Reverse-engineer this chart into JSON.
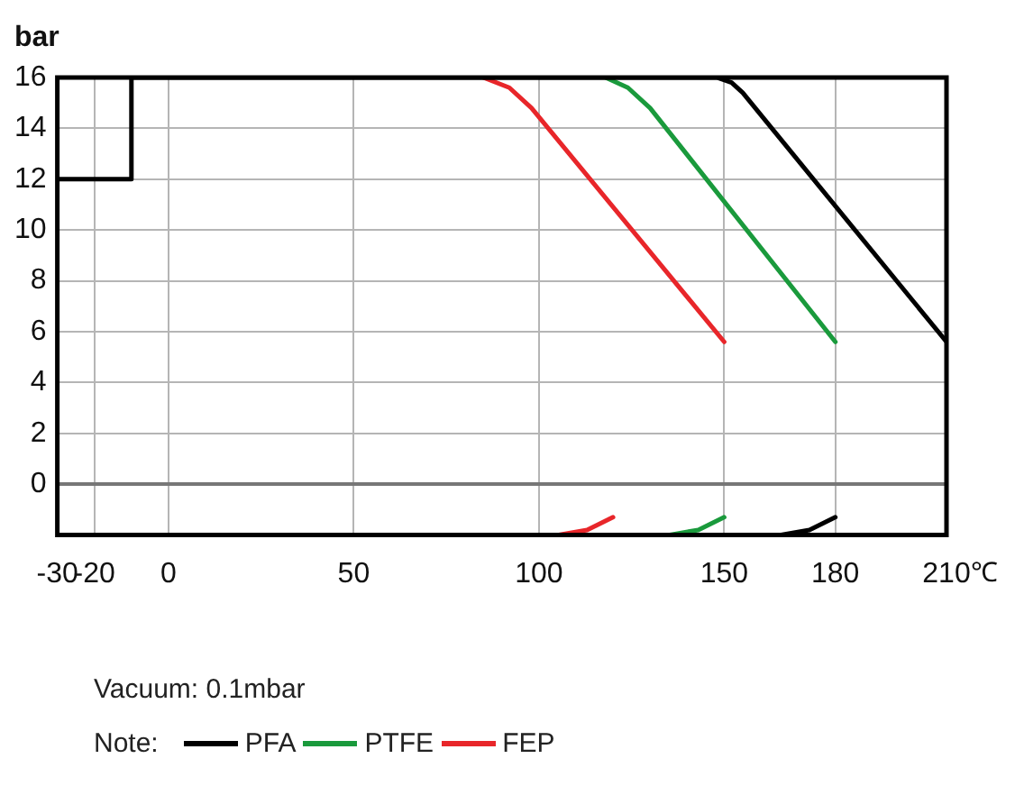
{
  "chart_data": {
    "type": "line",
    "ylabel": "bar",
    "xlabel": "℃",
    "legend_title": "Note:",
    "annotations": [
      "Vacuum: 0.1mbar"
    ],
    "xlim": [
      -30,
      210
    ],
    "xticks": [
      -30,
      -20,
      0,
      50,
      100,
      150,
      180,
      210
    ],
    "ylim": [
      -2,
      16
    ],
    "yticks": [
      0,
      2,
      4,
      6,
      8,
      10,
      12,
      14,
      16
    ],
    "grid": true,
    "legend": "bottom",
    "marker": "none",
    "line_style": "solid",
    "series": [
      {
        "name": "PFA",
        "color": "#000000",
        "x": [
          -30,
          -10,
          -10,
          148,
          152,
          155,
          210
        ],
        "values": [
          12,
          12,
          16,
          16,
          15.8,
          15.4,
          5.6
        ]
      },
      {
        "name": "PTFE",
        "color": "#1a9a3c",
        "x": [
          118,
          124,
          130,
          180
        ],
        "values": [
          16,
          15.6,
          14.8,
          5.6
        ]
      },
      {
        "name": "FEP",
        "color": "#e8262a",
        "x": [
          85,
          92,
          98,
          150
        ],
        "values": [
          16,
          15.6,
          14.8,
          5.6
        ]
      },
      {
        "color": "#e8262a",
        "x": [
          105,
          113,
          120
        ],
        "values": [
          -2,
          -1.8,
          -1.3
        ]
      },
      {
        "color": "#1a9a3c",
        "x": [
          135,
          143,
          150
        ],
        "values": [
          -2,
          -1.8,
          -1.3
        ]
      },
      {
        "color": "#000000",
        "x": [
          165,
          173,
          180
        ],
        "values": [
          -2,
          -1.8,
          -1.3
        ]
      }
    ]
  }
}
